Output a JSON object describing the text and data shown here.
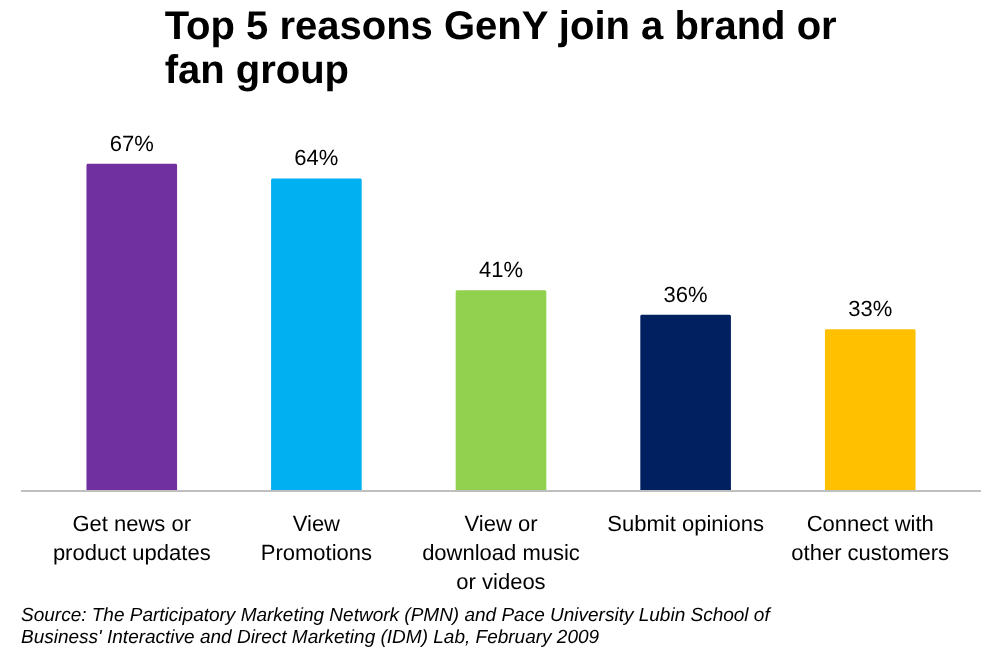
{
  "chart_data": {
    "type": "bar",
    "title": "Top 5 reasons GenY join a brand or fan group",
    "categories": [
      "Get news or\nproduct updates",
      "View\nPromotions",
      "View or\ndownload music\nor videos",
      "Submit opinions",
      "Connect with\nother customers"
    ],
    "values": [
      67,
      64,
      41,
      36,
      33
    ],
    "colors": [
      "#7030a0",
      "#00b0f0",
      "#92d050",
      "#002060",
      "#ffc000"
    ],
    "value_labels": [
      "67%",
      "64%",
      "41%",
      "36%",
      "33%"
    ],
    "grid": false,
    "annotations": [
      "Source: The Participatory Marketing Network (PMN) and Pace University Lubin School of Business' Interactive and Direct Marketing (IDM) Lab, February 2009"
    ]
  }
}
